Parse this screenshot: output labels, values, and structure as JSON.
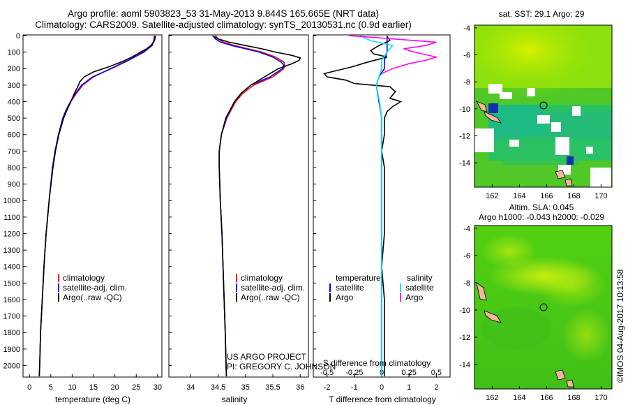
{
  "title": {
    "line1": "Argo profile: aoml 5903823_53 31-May-2013 9.844S 165.665E (NRT data)",
    "line2": "Climatology: CARS2009. Satellite-adjusted climatology: synTS_20130531.nc (0.9d earlier)"
  },
  "depth_axis": {
    "ticks": [
      0,
      100,
      200,
      300,
      400,
      500,
      600,
      700,
      800,
      900,
      1000,
      1100,
      1200,
      1300,
      1400,
      1500,
      1600,
      1700,
      1800,
      1900,
      2000
    ],
    "ylim": [
      2070,
      0
    ]
  },
  "colors": {
    "climatology": "#ff0000",
    "satellite": "#0000ff",
    "argo": "#000000",
    "sat_salinity": "#00e5ee",
    "argo_salinity": "#ff00ff"
  },
  "chart_data": [
    {
      "type": "line",
      "name": "temperature",
      "xlabel": "temperature (deg C)",
      "xlim": [
        -1.5,
        31
      ],
      "xticks": [
        0,
        5,
        10,
        15,
        20,
        25,
        30
      ],
      "legend": [
        "climatology",
        "satellite-adj. clim.",
        "Argo(..raw -QC)"
      ],
      "series": [
        {
          "name": "climatology",
          "depth": [
            0,
            30,
            60,
            100,
            150,
            200,
            250,
            300,
            350,
            400,
            450,
            500,
            600,
            700,
            800,
            1000,
            1200,
            1400,
            1600,
            1800,
            2000,
            2065
          ],
          "values": [
            29.2,
            29.1,
            28.5,
            26.5,
            23,
            19,
            15,
            12.5,
            11,
            9.7,
            8.7,
            7.9,
            6.8,
            6,
            5.4,
            4.6,
            3.9,
            3.4,
            3.0,
            2.6,
            2.4,
            2.3
          ]
        },
        {
          "name": "satellite-adj. clim.",
          "depth": [
            0,
            30,
            60,
            100,
            150,
            200,
            250,
            300,
            350,
            400,
            450,
            500,
            600,
            700,
            800,
            1000,
            1200,
            1400,
            1600,
            1800,
            2000,
            2065
          ],
          "values": [
            29.4,
            29.2,
            28.7,
            26.8,
            23.2,
            19.2,
            14.8,
            12.2,
            10.8,
            9.6,
            8.6,
            7.8,
            6.8,
            6,
            5.4,
            4.6,
            3.9,
            3.4,
            3.0,
            2.6,
            2.4,
            2.3
          ]
        },
        {
          "name": "Argo(..raw -QC)",
          "depth": [
            5,
            20,
            40,
            60,
            80,
            100,
            130,
            160,
            190,
            220,
            250,
            280,
            310,
            350,
            400,
            450,
            500,
            600,
            700,
            800,
            1000,
            1200,
            1400,
            1600,
            1800,
            2000,
            2065
          ],
          "values": [
            29.5,
            29.4,
            29.1,
            28.4,
            27.4,
            26,
            24,
            21.5,
            18.5,
            15,
            12.8,
            11.8,
            11.3,
            10.5,
            9.7,
            8.8,
            8,
            6.9,
            6.1,
            5.5,
            4.6,
            3.9,
            3.4,
            3.0,
            2.6,
            2.4,
            2.3
          ]
        }
      ]
    },
    {
      "type": "line",
      "name": "salinity",
      "xlabel": "salinity",
      "xlim": [
        33.6,
        36.15
      ],
      "xticks": [
        34,
        34.5,
        35,
        35.5,
        36
      ],
      "legend": [
        "climatology",
        "satellite-adj. clim.",
        "Argo(..raw -QC)"
      ],
      "series": [
        {
          "name": "climatology",
          "depth": [
            0,
            20,
            40,
            60,
            80,
            100,
            130,
            160,
            180,
            200,
            250,
            300,
            350,
            400,
            500,
            600,
            700,
            800,
            1000,
            1200,
            1500,
            1800,
            2065
          ],
          "values": [
            34.45,
            34.5,
            34.6,
            34.8,
            35.05,
            35.3,
            35.55,
            35.7,
            35.72,
            35.7,
            35.5,
            35.15,
            34.95,
            34.82,
            34.66,
            34.56,
            34.52,
            34.52,
            34.54,
            34.57,
            34.6,
            34.63,
            34.65
          ]
        },
        {
          "name": "satellite-adj. clim.",
          "depth": [
            0,
            20,
            40,
            60,
            80,
            100,
            130,
            160,
            180,
            200,
            250,
            300,
            350,
            400,
            500,
            600,
            700,
            800,
            1000,
            1200,
            1500,
            1800,
            2065
          ],
          "values": [
            34.4,
            34.45,
            34.55,
            34.75,
            35,
            35.25,
            35.5,
            35.65,
            35.7,
            35.68,
            35.45,
            35.1,
            34.92,
            34.8,
            34.65,
            34.56,
            34.52,
            34.52,
            34.54,
            34.57,
            34.6,
            34.63,
            34.65
          ]
        },
        {
          "name": "Argo(..raw -QC)",
          "depth": [
            5,
            20,
            40,
            60,
            80,
            100,
            120,
            135,
            150,
            170,
            200,
            230,
            260,
            300,
            350,
            400,
            450,
            500,
            600,
            700,
            800,
            1000,
            1200,
            1500,
            1800,
            2065
          ],
          "values": [
            34.42,
            34.5,
            34.7,
            35.0,
            35.3,
            35.55,
            35.85,
            36.0,
            35.98,
            35.85,
            35.6,
            35.45,
            35.3,
            35.1,
            34.92,
            34.8,
            34.72,
            34.64,
            34.56,
            34.52,
            34.52,
            34.54,
            34.57,
            34.6,
            34.63,
            34.65
          ]
        }
      ]
    },
    {
      "type": "line",
      "name": "difference",
      "xlabel": "T difference from climatology",
      "xlabel_top": "S difference from climatology",
      "xlim": [
        -2.5,
        2.5
      ],
      "xticks": [
        -2,
        -1,
        0,
        1,
        2
      ],
      "sticks": [
        -0.5,
        -0.25,
        0,
        0.25,
        0.5
      ],
      "legend_headers": [
        "temperature",
        "salinity"
      ],
      "legend": [
        "satellite",
        "Argo",
        "satellite",
        "Argo"
      ],
      "series": [
        {
          "name": "T satellite",
          "depth": [
            0,
            50,
            100,
            150,
            200,
            250,
            300,
            400,
            500,
            700,
            1000,
            1500,
            2065
          ],
          "values": [
            0.2,
            0.2,
            0.2,
            0.1,
            0.1,
            -0.1,
            -0.2,
            -0.1,
            0,
            0,
            0,
            0,
            0
          ]
        },
        {
          "name": "T Argo",
          "depth": [
            5,
            30,
            60,
            90,
            110,
            130,
            160,
            190,
            210,
            230,
            250,
            270,
            290,
            310,
            340,
            380,
            400,
            430,
            460,
            500,
            600,
            700,
            800,
            1000,
            1100,
            1200,
            1400,
            1600,
            1800,
            1900,
            2000,
            2065
          ],
          "values": [
            0.2,
            0.3,
            -0.1,
            -0.4,
            -0.3,
            0.2,
            -0.5,
            -1.1,
            -1.6,
            -2.1,
            -2.0,
            -1.3,
            -1.0,
            0.3,
            0.5,
            0.3,
            0.7,
            0.4,
            0.2,
            0.1,
            0.1,
            0,
            0.1,
            0.1,
            0.1,
            0.1,
            0,
            0.1,
            0.1,
            0.1,
            0.1,
            0.1
          ]
        },
        {
          "name": "S satellite",
          "depth": [
            0,
            30,
            60,
            100,
            150,
            200,
            300,
            400,
            500,
            700,
            1000,
            1500,
            2065
          ],
          "values": [
            -0.2,
            -0.1,
            0.1,
            0.05,
            0.0,
            0.0,
            -0.05,
            -0.02,
            0,
            0,
            0,
            0,
            0
          ]
        },
        {
          "name": "S Argo",
          "depth": [
            0,
            20,
            30,
            40,
            60,
            80,
            100,
            130,
            150,
            170,
            200,
            230
          ],
          "values": [
            -0.3,
            0.1,
            0.3,
            0.5,
            0.4,
            0.2,
            0.3,
            0.5,
            0.4,
            0.25,
            0.1,
            0.0
          ]
        }
      ]
    }
  ],
  "maps": {
    "sst": {
      "title": "sat. SST: 29.1 Argo: 29",
      "xticks": [
        "162",
        "164",
        "166",
        "168",
        "170"
      ],
      "yticks": [
        "-4",
        "-6",
        "-8",
        "-10",
        "-12",
        "-14"
      ]
    },
    "sla": {
      "title1": "Altim. SLA: 0.045",
      "title2": "Argo h1000: -0.043 h2000: -0.029",
      "xticks": [
        "162",
        "164",
        "166",
        "168",
        "170"
      ],
      "yticks": [
        "-4",
        "-6",
        "-8",
        "-10",
        "-12",
        "-14"
      ]
    }
  },
  "credits": {
    "project": "US ARGO PROJECT",
    "pi": "PI: GREGORY C. JOHNSON",
    "watermark": "©IMOS 04-Aug-2017 10:13:58"
  }
}
